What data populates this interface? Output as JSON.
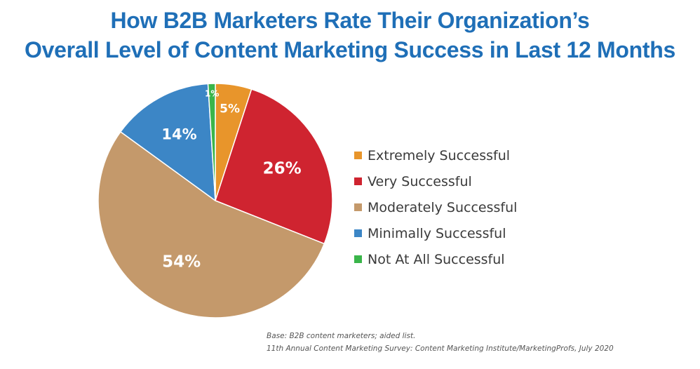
{
  "colors": {
    "title": "#1f6fb7",
    "Extremely Successful": "#e8952b",
    "Very Successful": "#cf2430",
    "Moderately Successful": "#c4996b",
    "Minimally Successful": "#3c86c6",
    "Not At All Successful": "#3ab54a"
  },
  "chart_data": {
    "type": "pie",
    "title_line1": "How B2B Marketers Rate Their Organization’s",
    "title_line2": "Overall Level of Content Marketing Success in Last 12 Months",
    "legend_position": "right",
    "slices": [
      {
        "label": "Extremely Successful",
        "value": 5,
        "display": "5%"
      },
      {
        "label": "Very Successful",
        "value": 26,
        "display": "26%"
      },
      {
        "label": "Moderately Successful",
        "value": 54,
        "display": "54%"
      },
      {
        "label": "Minimally Successful",
        "value": 14,
        "display": "14%"
      },
      {
        "label": "Not At All Successful",
        "value": 1,
        "display": "1%"
      }
    ],
    "legend": [
      "Extremely Successful",
      "Very Successful",
      "Moderately Successful",
      "Minimally Successful",
      "Not At All Successful"
    ]
  },
  "footnotes": {
    "base": "Base: B2B content marketers; aided list.",
    "source": "11th Annual Content Marketing Survey: Content Marketing Institute/MarketingProfs, July 2020"
  }
}
